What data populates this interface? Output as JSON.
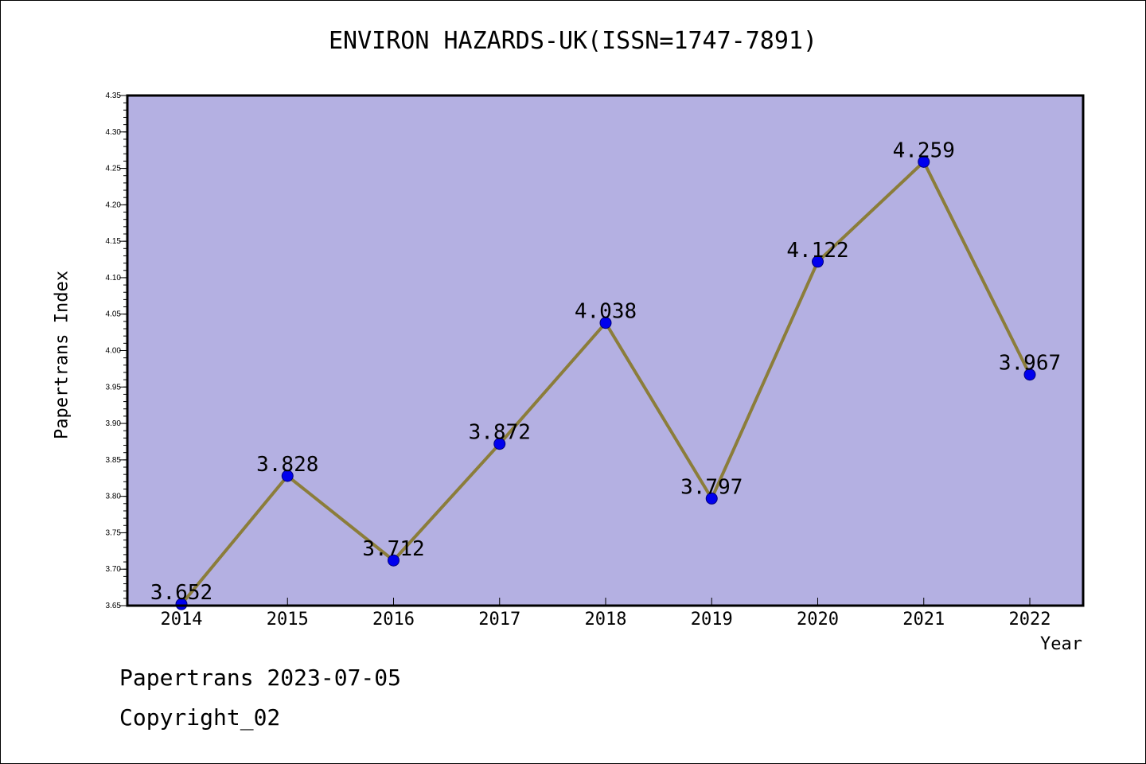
{
  "title": "ENVIRON HAZARDS-UK(ISSN=1747-7891)",
  "footer": {
    "line1": "Papertrans 2023-07-05",
    "line2": "Copyright_02"
  },
  "colors": {
    "plot_background": "#b4b0e2",
    "line": "#8b7d3a",
    "marker": "#0000ee"
  },
  "chart_data": {
    "type": "line",
    "title": "ENVIRON HAZARDS-UK(ISSN=1747-7891)",
    "xlabel": "Year",
    "ylabel": "Papertrans Index",
    "categories": [
      "2014",
      "2015",
      "2016",
      "2017",
      "2018",
      "2019",
      "2020",
      "2021",
      "2022"
    ],
    "values": [
      3.652,
      3.828,
      3.712,
      3.872,
      4.038,
      3.797,
      4.122,
      4.259,
      3.967
    ],
    "data_labels": [
      "3.652",
      "3.828",
      "3.712",
      "3.872",
      "4.038",
      "3.797",
      "4.122",
      "4.259",
      "3.967"
    ],
    "ylim": [
      3.65,
      4.35
    ],
    "yticks": [
      "3.65",
      "3.70",
      "3.75",
      "3.80",
      "3.85",
      "3.90",
      "3.95",
      "4.00",
      "4.05",
      "4.10",
      "4.15",
      "4.20",
      "4.25",
      "4.30",
      "4.35"
    ],
    "grid": false,
    "legend": "none"
  }
}
